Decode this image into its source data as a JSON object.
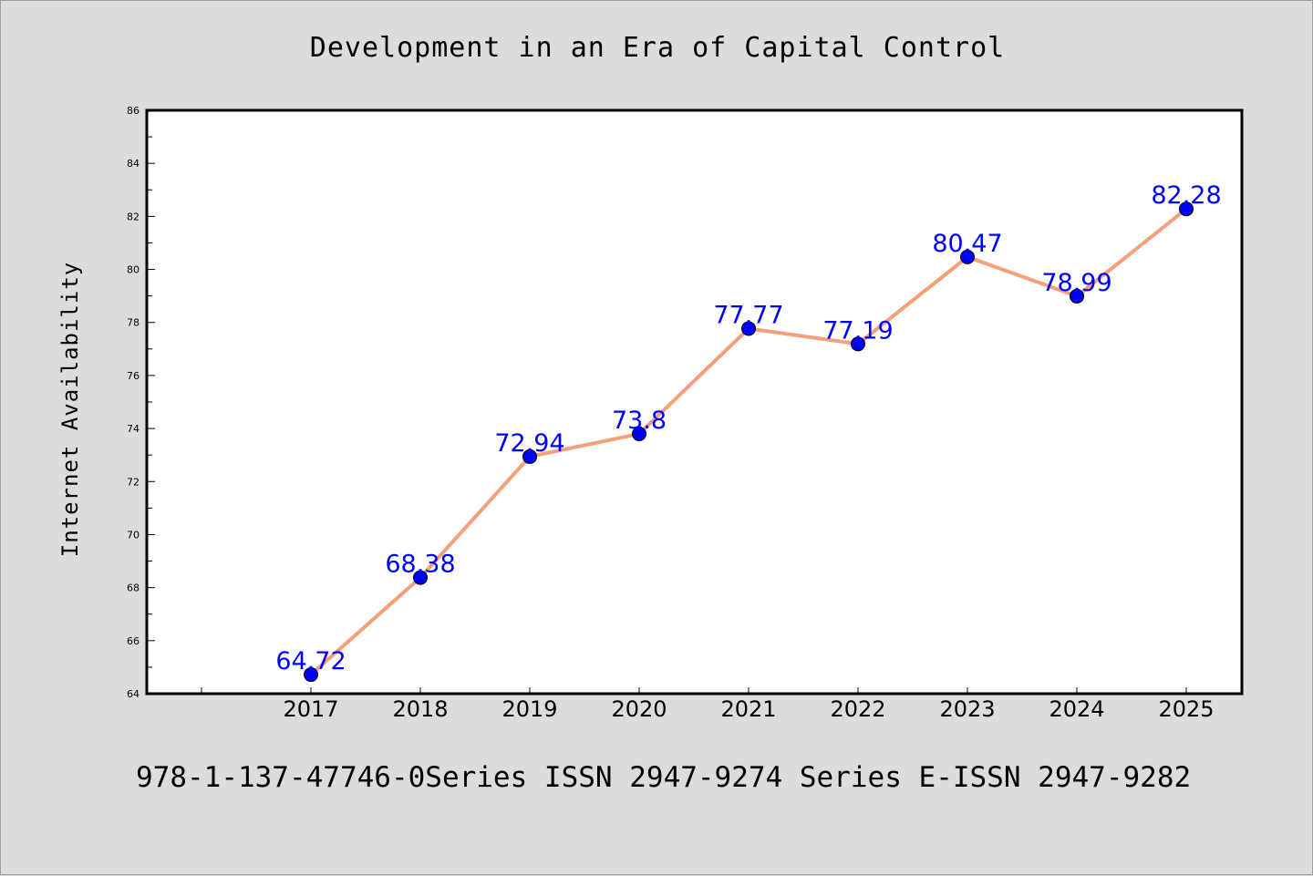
{
  "chart_data": {
    "type": "line",
    "title": "Development in an Era of Capital Control",
    "xlabel": "",
    "ylabel": "Internet Availability",
    "categories": [
      "2017",
      "2018",
      "2019",
      "2020",
      "2021",
      "2022",
      "2023",
      "2024",
      "2025"
    ],
    "series": [
      {
        "values": [
          64.72,
          68.38,
          72.94,
          73.8,
          77.77,
          77.19,
          80.47,
          78.99,
          82.28
        ],
        "data_labels": [
          "64.72",
          "68.38",
          "72.94",
          "73.8",
          "77.77",
          "77.19",
          "80.47",
          "78.99",
          "82.28"
        ],
        "line_color": "#f4a07a",
        "marker_color": "#0000ff"
      }
    ],
    "ylim": [
      64,
      86
    ],
    "yticks": [
      "64",
      "66",
      "68",
      "70",
      "72",
      "74",
      "76",
      "78",
      "80",
      "82",
      "84",
      "86"
    ],
    "grid": false,
    "legend": "none"
  },
  "footer": {
    "text": "978-1-137-47746-0Series ISSN 2947-9274 Series E-ISSN 2947-9282"
  },
  "colors": {
    "background": "#dcdcdc",
    "plot_background": "#ffffff",
    "axis": "#000000",
    "data_label": "#0000ff"
  }
}
